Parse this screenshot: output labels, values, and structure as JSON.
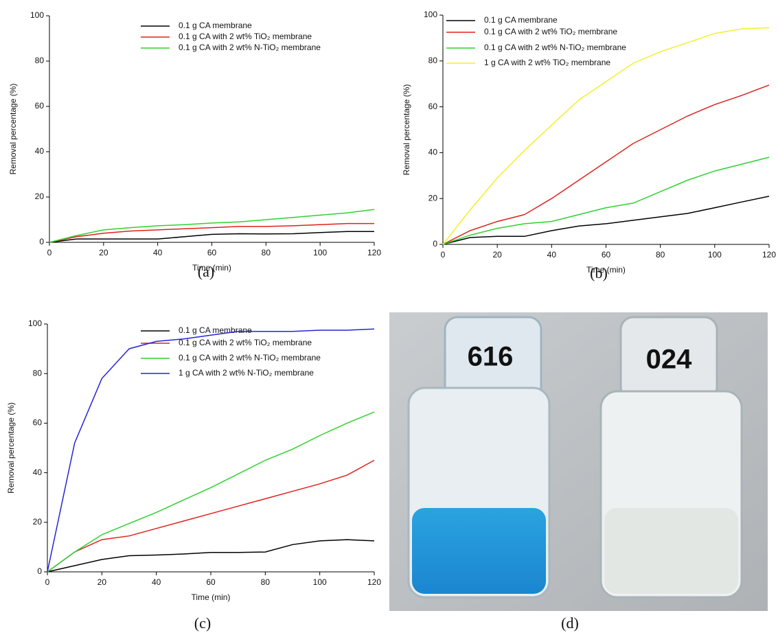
{
  "chart_data": [
    {
      "type": "line",
      "caption": "(a)",
      "xlabel": "Time (min)",
      "ylabel": "Removal percentage (%)",
      "x": [
        0,
        10,
        20,
        30,
        40,
        50,
        60,
        70,
        80,
        90,
        100,
        110,
        120
      ],
      "xlim": [
        0,
        120
      ],
      "ylim": [
        0,
        100
      ],
      "xticks": [
        0,
        20,
        40,
        60,
        80,
        100,
        120
      ],
      "yticks": [
        0,
        20,
        40,
        60,
        80,
        100
      ],
      "series": [
        {
          "name": "0.1 g CA membrane",
          "color": "#000000",
          "values": [
            0,
            1.5,
            1.5,
            1.5,
            1.5,
            2.5,
            3.5,
            3.8,
            3.7,
            3.8,
            4.3,
            4.8,
            4.8
          ]
        },
        {
          "name": "0.1 g CA with 2 wt% TiO₂ membrane",
          "color": "#e0201b",
          "values": [
            0,
            2.5,
            4,
            5,
            5.5,
            6,
            6.5,
            7,
            7,
            7.3,
            7.8,
            8.3,
            8.3
          ]
        },
        {
          "name": "0.1 g CA with 2 wt% N-TiO₂ membrane",
          "color": "#2ed12e",
          "values": [
            0,
            3,
            5.5,
            6.5,
            7.3,
            7.8,
            8.5,
            9,
            10,
            11,
            12,
            13,
            14.5
          ]
        }
      ]
    },
    {
      "type": "line",
      "caption": "(b)",
      "xlabel": "Time (min)",
      "ylabel": "Removal percentage (%)",
      "x": [
        0,
        10,
        20,
        30,
        40,
        50,
        60,
        70,
        80,
        90,
        100,
        110,
        120
      ],
      "xlim": [
        0,
        120
      ],
      "ylim": [
        0,
        100
      ],
      "xticks": [
        0,
        20,
        40,
        60,
        80,
        100,
        120
      ],
      "yticks": [
        0,
        20,
        40,
        60,
        80,
        100
      ],
      "series": [
        {
          "name": "0.1 g CA membrane",
          "color": "#000000",
          "values": [
            0,
            3,
            3.5,
            3.5,
            6,
            8,
            9,
            10.5,
            12,
            13.5,
            16,
            18.5,
            21
          ]
        },
        {
          "name": "0.1 g CA with 2 wt%  TiO₂ membrane",
          "color": "#e0201b",
          "values": [
            0,
            6,
            10,
            13,
            20,
            28,
            36,
            44,
            50,
            56,
            61,
            65,
            69.5
          ]
        },
        {
          "name": "0.1 g CA with 2 wt% N-TiO₂ membrane",
          "color": "#2ed12e",
          "values": [
            0,
            4,
            7,
            9,
            10,
            13,
            16,
            18,
            23,
            28,
            32,
            35,
            38
          ]
        },
        {
          "name": "1 g CA with 2 wt% TiO₂ membrane",
          "color": "#f2f02a",
          "values": [
            0,
            15,
            29,
            41,
            52,
            63,
            71,
            79,
            84,
            88,
            92,
            94,
            94.5
          ]
        }
      ]
    },
    {
      "type": "line",
      "caption": "(c)",
      "xlabel": "Time (min)",
      "ylabel": "Removal percentage (%)",
      "x": [
        0,
        10,
        20,
        30,
        40,
        50,
        60,
        70,
        80,
        90,
        100,
        110,
        120
      ],
      "xlim": [
        0,
        120
      ],
      "ylim": [
        0,
        100
      ],
      "xticks": [
        0,
        20,
        40,
        60,
        80,
        100,
        120
      ],
      "yticks": [
        0,
        20,
        40,
        60,
        80,
        100
      ],
      "series": [
        {
          "name": "0.1 g CA membrane",
          "color": "#000000",
          "values": [
            0,
            2.5,
            5,
            6.5,
            6.8,
            7.2,
            7.8,
            7.8,
            8,
            11,
            12.5,
            13,
            12.5
          ]
        },
        {
          "name": "0.1 g CA with 2 wt% TiO₂ membrane",
          "color": "#e0201b",
          "values": [
            0,
            8,
            13,
            14.5,
            17.5,
            20.5,
            23.5,
            26.5,
            29.5,
            32.5,
            35.5,
            39,
            45
          ]
        },
        {
          "name": "0.1 g CA with 2 wt% N-TiO₂ membrane",
          "color": "#2ed12e",
          "values": [
            0,
            8,
            15,
            19.5,
            24,
            29,
            34,
            39.5,
            45,
            49.5,
            55,
            60,
            64.5
          ]
        },
        {
          "name": "1 g CA with 2 wt% N-TiO₂ membrane",
          "color": "#2424d6",
          "values": [
            0,
            52,
            78,
            90,
            93,
            94,
            95.5,
            97,
            97,
            97,
            97.5,
            97.5,
            98
          ]
        }
      ]
    }
  ],
  "photo": {
    "caption": "(d)",
    "labels": [
      "616",
      "024"
    ]
  }
}
